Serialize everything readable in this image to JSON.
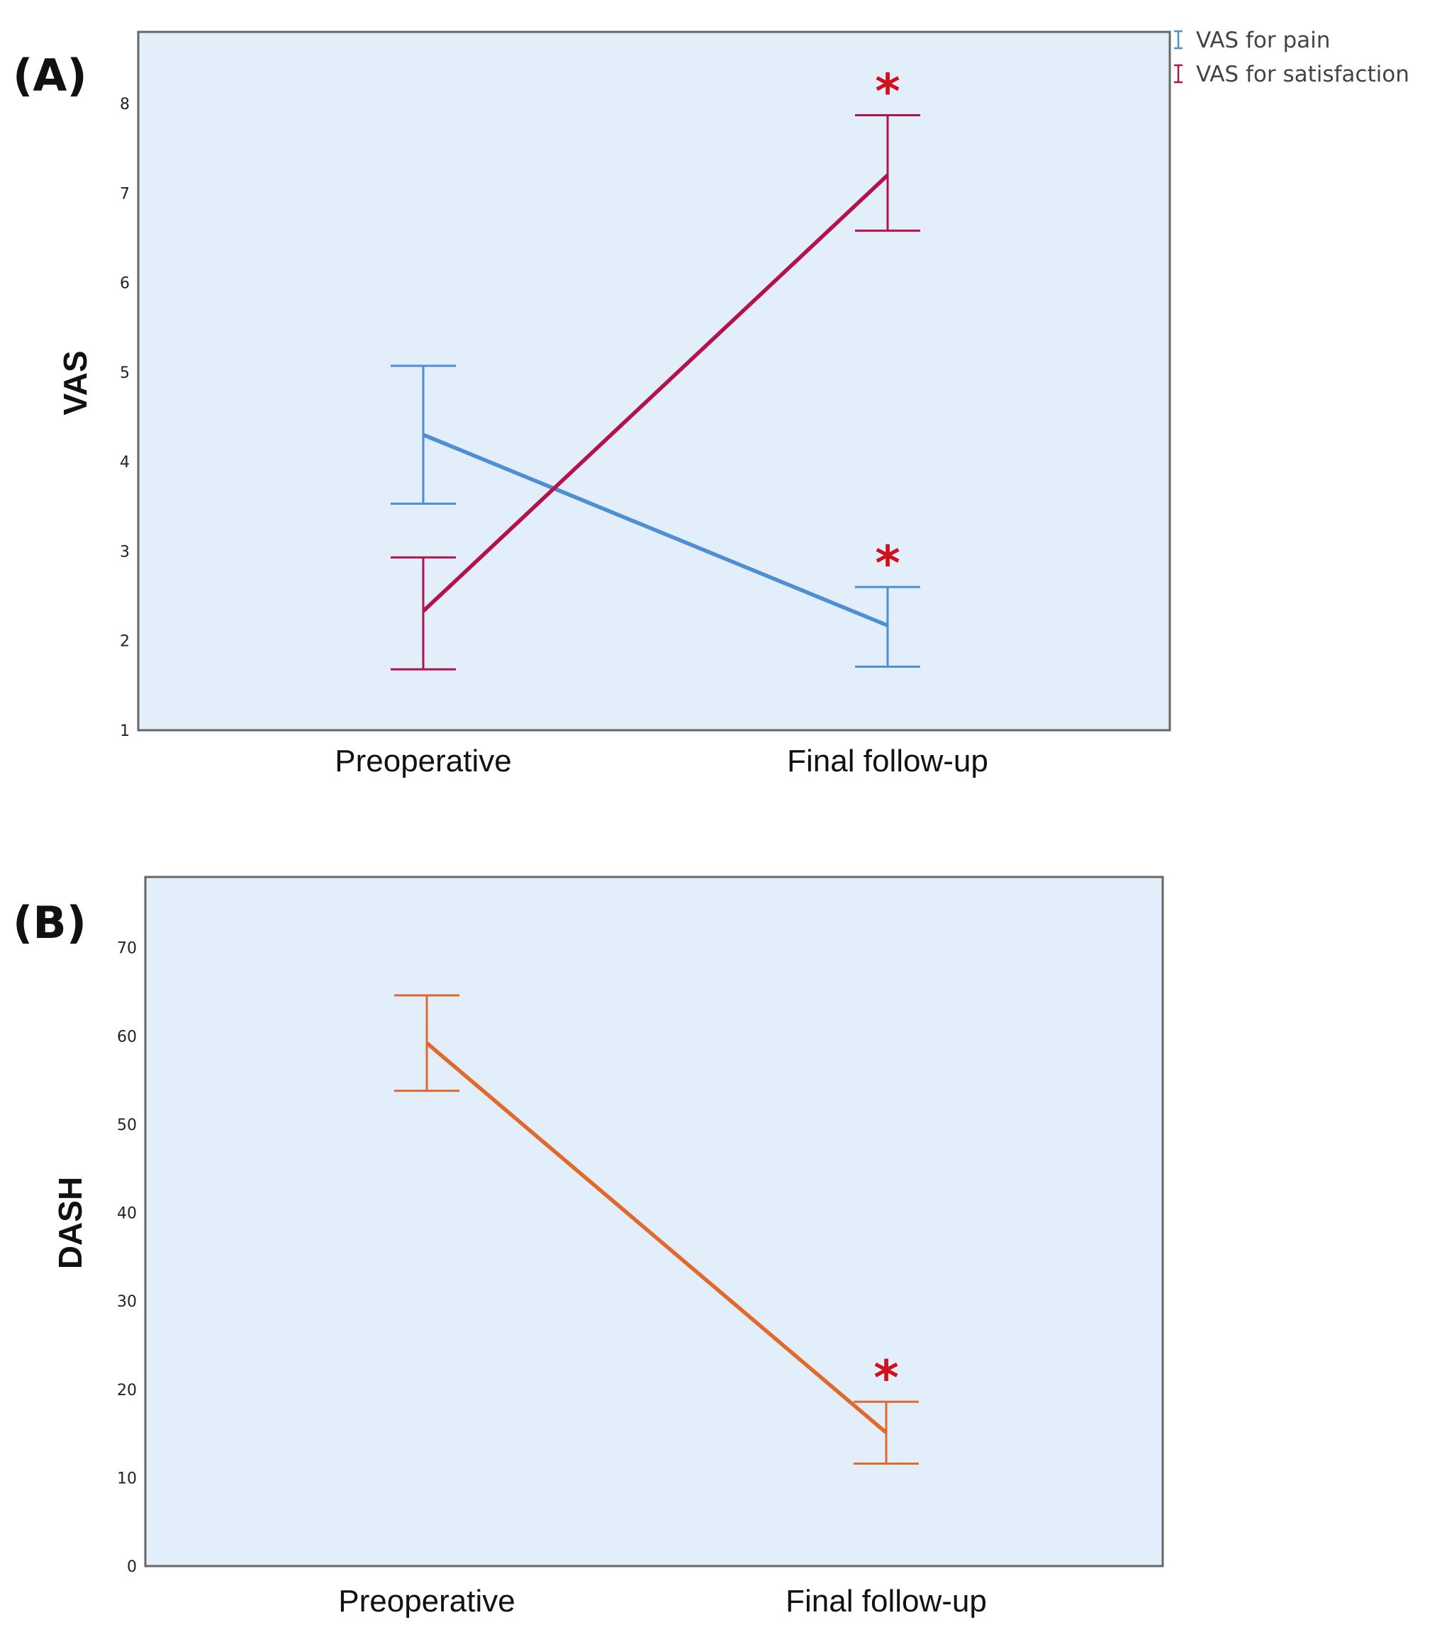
{
  "colors": {
    "pain": "#4e8ed3",
    "satisfaction": "#b3134a",
    "dash": "#e06a2c",
    "star": "#d0101c",
    "plot_background": "#e2eefa"
  },
  "chart_data": [
    {
      "panel": "(A)",
      "type": "line",
      "ylabel": "VAS",
      "categories": [
        "Preoperative",
        "Final follow-up"
      ],
      "ylim": [
        1,
        8.8
      ],
      "yticks": [
        1,
        2,
        3,
        4,
        5,
        6,
        7,
        8
      ],
      "legend": "top-right",
      "series": [
        {
          "name": "VAS for pain",
          "color_key": "pain",
          "values": [
            4.3,
            2.17
          ],
          "ci_lower": [
            3.53,
            1.71
          ],
          "ci_upper": [
            5.07,
            2.6
          ],
          "significance": [
            "",
            "*"
          ]
        },
        {
          "name": "VAS for satisfaction",
          "color_key": "satisfaction",
          "values": [
            2.33,
            7.2
          ],
          "ci_lower": [
            1.68,
            6.58
          ],
          "ci_upper": [
            2.93,
            7.87
          ],
          "significance": [
            "",
            "*"
          ]
        }
      ]
    },
    {
      "panel": "(B)",
      "type": "line",
      "ylabel": "DASH",
      "categories": [
        "Preoperative",
        "Final follow-up"
      ],
      "ylim": [
        0,
        78
      ],
      "yticks": [
        0,
        10,
        20,
        30,
        40,
        50,
        60,
        70
      ],
      "series": [
        {
          "name": "DASH",
          "color_key": "dash",
          "values": [
            59.2,
            15.1
          ],
          "ci_lower": [
            53.8,
            11.6
          ],
          "ci_upper": [
            64.6,
            18.6
          ],
          "significance": [
            "",
            "*"
          ]
        }
      ]
    }
  ]
}
